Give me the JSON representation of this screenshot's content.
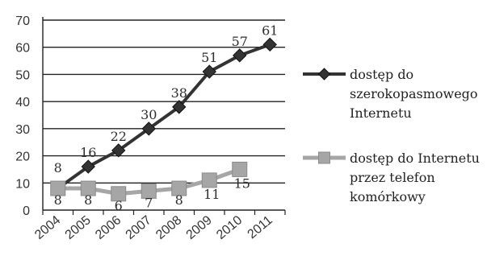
{
  "chart_data": {
    "type": "line",
    "x": [
      "2004",
      "2005",
      "2006",
      "2007",
      "2008",
      "2009",
      "2010",
      "2011"
    ],
    "ylim": [
      0,
      70
    ],
    "yticks": [
      0,
      10,
      20,
      30,
      40,
      50,
      60,
      70
    ],
    "grid": "horizontal",
    "legend_position": "right",
    "series": [
      {
        "legend_lines": [
          "dostęp do",
          "szerokopasmowego",
          "Internetu"
        ],
        "values": [
          8,
          16,
          22,
          30,
          38,
          51,
          57,
          61
        ],
        "labels": [
          "8",
          "16",
          "22",
          "30",
          "38",
          "51",
          "57",
          "61"
        ],
        "color": "#333333",
        "marker": "diamond"
      },
      {
        "legend_lines": [
          "dostęp do Internetu",
          "przez telefon",
          "komórkowy"
        ],
        "values": [
          8,
          8,
          6,
          7,
          8,
          11,
          15,
          null
        ],
        "labels": [
          "8",
          "8",
          "6",
          "7",
          "8",
          "11",
          "15",
          null
        ],
        "color": "#a6a6a6",
        "marker": "square"
      }
    ]
  }
}
